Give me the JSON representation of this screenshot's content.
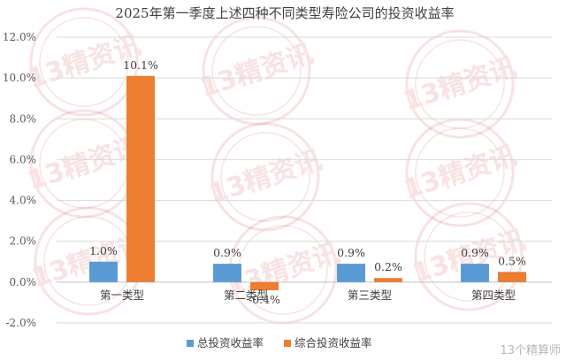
{
  "chart_data": {
    "type": "bar",
    "title": "2025年第一季度上述四种不同类型寿险公司的投资收益率",
    "categories": [
      "第一类型",
      "第二类型",
      "第三类型",
      "第四类型"
    ],
    "series": [
      {
        "name": "总投资收益率",
        "color": "#5b9bd5",
        "values": [
          1.0,
          0.9,
          0.9,
          0.9
        ],
        "labels": [
          "1.0%",
          "0.9%",
          "0.9%",
          "0.9%"
        ]
      },
      {
        "name": "综合投资收益率",
        "color": "#ed7d31",
        "values": [
          10.1,
          -0.4,
          0.2,
          0.5
        ],
        "labels": [
          "10.1%",
          "-0.4%",
          "0.2%",
          "0.5%"
        ]
      }
    ],
    "ylim": [
      -2,
      12
    ],
    "yticks": [
      -2,
      0,
      2,
      4,
      6,
      8,
      10,
      12
    ],
    "ytick_labels": [
      "-2.0%",
      "0.0%",
      "2.0%",
      "4.0%",
      "6.0%",
      "8.0%",
      "10.0%",
      "12.0%"
    ],
    "xlabel": "",
    "ylabel": "",
    "grid": true,
    "legend_position": "bottom"
  },
  "watermark": {
    "stamp_text": "13精资讯",
    "corner_text": "13个精算师",
    "color": "#d9534f"
  }
}
